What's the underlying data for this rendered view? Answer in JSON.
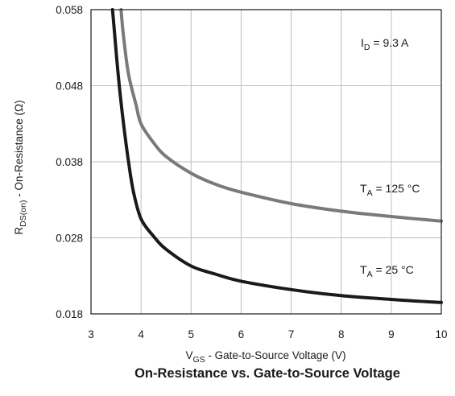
{
  "chart_data": {
    "type": "line",
    "title": "On-Resistance vs. Gate-to-Source Voltage",
    "xlabel": {
      "main": "V",
      "sub": "GS",
      "rest": " - Gate-to-Source Voltage (V)"
    },
    "ylabel": {
      "main": "R",
      "sub": "DS(on)",
      "rest": " - On-Resistance (Ω)"
    },
    "xlim": [
      3,
      10
    ],
    "ylim": [
      0.018,
      0.058
    ],
    "x_ticks": [
      3,
      4,
      5,
      6,
      7,
      8,
      9,
      10
    ],
    "x_tick_labels": [
      "3",
      "4",
      "5",
      "6",
      "7",
      "8",
      "9",
      "10"
    ],
    "y_ticks": [
      0.018,
      0.028,
      0.038,
      0.048,
      0.058
    ],
    "y_tick_labels": [
      "0.018",
      "0.028",
      "0.038",
      "0.048",
      "0.058"
    ],
    "grid": true,
    "annotation": {
      "main": "I",
      "sub": "D",
      "rest": " = 9.3 A"
    },
    "series": [
      {
        "name": {
          "main": "T",
          "sub": "A",
          "rest": " = 125 °C"
        },
        "color": "#7a7a7a",
        "x": [
          3.6,
          3.65,
          3.75,
          3.9,
          4.0,
          4.25,
          4.5,
          5.0,
          5.5,
          6.0,
          7.0,
          8.0,
          9.0,
          10.0
        ],
        "y": [
          0.058,
          0.0545,
          0.0495,
          0.0455,
          0.043,
          0.0405,
          0.0387,
          0.0365,
          0.035,
          0.034,
          0.0325,
          0.0315,
          0.0308,
          0.0302
        ]
      },
      {
        "name": {
          "main": "T",
          "sub": "A",
          "rest": " = 25 °C"
        },
        "color": "#1a1a1a",
        "x": [
          3.43,
          3.47,
          3.55,
          3.65,
          3.75,
          3.85,
          4.0,
          4.25,
          4.5,
          5.0,
          5.5,
          6.0,
          7.0,
          8.0,
          9.0,
          10.0
        ],
        "y": [
          0.058,
          0.055,
          0.049,
          0.043,
          0.038,
          0.034,
          0.0305,
          0.0282,
          0.0265,
          0.0243,
          0.0232,
          0.0223,
          0.0212,
          0.0204,
          0.0199,
          0.0195
        ]
      }
    ]
  }
}
